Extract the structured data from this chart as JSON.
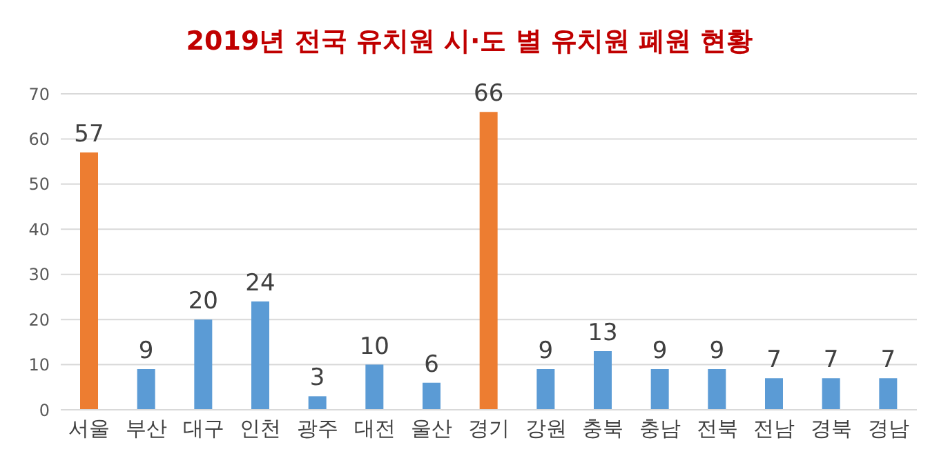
{
  "chart_data": {
    "type": "bar",
    "title": "2019년 전국 유치원 시·도 별 유치원 폐원 현황",
    "categories": [
      "서울",
      "부산",
      "대구",
      "인천",
      "광주",
      "대전",
      "울산",
      "경기",
      "강원",
      "충북",
      "충남",
      "전북",
      "전남",
      "경북",
      "경남"
    ],
    "values": [
      57,
      9,
      20,
      24,
      3,
      10,
      6,
      66,
      9,
      13,
      9,
      9,
      7,
      7,
      7
    ],
    "colors": [
      "#ed7d31",
      "#5b9bd5",
      "#5b9bd5",
      "#5b9bd5",
      "#5b9bd5",
      "#5b9bd5",
      "#5b9bd5",
      "#ed7d31",
      "#5b9bd5",
      "#5b9bd5",
      "#5b9bd5",
      "#5b9bd5",
      "#5b9bd5",
      "#5b9bd5",
      "#5b9bd5"
    ],
    "ylim": [
      0,
      70
    ],
    "yticks": [
      0,
      10,
      20,
      30,
      40,
      50,
      60,
      70
    ],
    "grid": "y",
    "data_labels": true
  }
}
